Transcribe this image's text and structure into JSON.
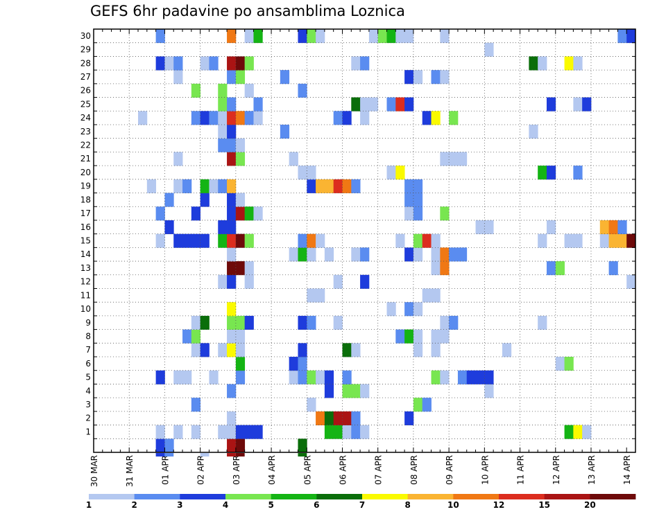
{
  "chart_data": {
    "type": "heatmap",
    "title": "GEFS 6hr padavine po ansamblima Loznica",
    "xlabel": "",
    "ylabel": "",
    "x_labels": [
      "30 MAR",
      "31 MAR",
      "01 APR",
      "02 APR",
      "03 APR",
      "04 APR",
      "05 APR",
      "06 APR",
      "07 APR",
      "08 APR",
      "09 APR",
      "10 APR",
      "11 APR",
      "12 APR",
      "13 APR",
      "14 APR"
    ],
    "x_steps": 61,
    "steps_per_day": 4,
    "y_labels": [
      "1",
      "2",
      "3",
      "4",
      "5",
      "6",
      "7",
      "8",
      "9",
      "10",
      "11",
      "12",
      "13",
      "14",
      "15",
      "16",
      "17",
      "18",
      "19",
      "20",
      "21",
      "22",
      "23",
      "24",
      "25",
      "26",
      "27",
      "28",
      "29",
      "30"
    ],
    "y_rows": 31,
    "colorbar_labels": [
      "1",
      "2",
      "3",
      "4",
      "5",
      "6",
      "7",
      "8",
      "10",
      "12",
      "15",
      "20"
    ],
    "levels": [
      {
        "name": "level-1-2",
        "color": "#b4c8f0"
      },
      {
        "name": "level-2-3",
        "color": "#5a8cf0"
      },
      {
        "name": "level-3-4",
        "color": "#1e3cdc"
      },
      {
        "name": "level-4-5",
        "color": "#78e650"
      },
      {
        "name": "level-5-6",
        "color": "#14b414"
      },
      {
        "name": "level-6-7",
        "color": "#0a6e0a"
      },
      {
        "name": "level-7-8",
        "color": "#fafa00"
      },
      {
        "name": "level-8-10",
        "color": "#fab432"
      },
      {
        "name": "level-10-12",
        "color": "#f07814"
      },
      {
        "name": "level-12-15",
        "color": "#dc2d1e"
      },
      {
        "name": "level-15-20",
        "color": "#aa1414"
      },
      {
        "name": "level-20+",
        "color": "#6e0a0a"
      }
    ],
    "cells": [
      [
        7,
        0,
        3
      ],
      [
        8,
        0,
        2
      ],
      [
        15,
        0,
        11
      ],
      [
        16,
        0,
        12
      ],
      [
        23,
        0,
        6
      ],
      [
        7,
        1,
        1
      ],
      [
        9,
        1,
        1
      ],
      [
        11,
        1,
        1
      ],
      [
        14,
        1,
        1
      ],
      [
        15,
        1,
        1
      ],
      [
        16,
        1,
        3
      ],
      [
        17,
        1,
        3
      ],
      [
        18,
        1,
        3
      ],
      [
        26,
        1,
        5
      ],
      [
        27,
        1,
        5
      ],
      [
        28,
        1,
        1
      ],
      [
        29,
        1,
        2
      ],
      [
        30,
        1,
        1
      ],
      [
        53,
        1,
        5
      ],
      [
        54,
        1,
        7
      ],
      [
        55,
        1,
        1
      ],
      [
        15,
        2,
        1
      ],
      [
        25,
        2,
        9
      ],
      [
        26,
        2,
        6
      ],
      [
        27,
        2,
        11
      ],
      [
        28,
        2,
        11
      ],
      [
        29,
        2,
        2
      ],
      [
        35,
        2,
        3
      ],
      [
        11,
        3,
        2
      ],
      [
        24,
        3,
        1
      ],
      [
        36,
        3,
        4
      ],
      [
        37,
        3,
        2
      ],
      [
        15,
        4,
        2
      ],
      [
        26,
        4,
        3
      ],
      [
        28,
        4,
        4
      ],
      [
        29,
        4,
        4
      ],
      [
        30,
        4,
        1
      ],
      [
        44,
        4,
        1
      ],
      [
        7,
        5,
        3
      ],
      [
        9,
        5,
        1
      ],
      [
        10,
        5,
        1
      ],
      [
        13,
        5,
        1
      ],
      [
        16,
        5,
        2
      ],
      [
        22,
        5,
        1
      ],
      [
        23,
        5,
        2
      ],
      [
        24,
        5,
        4
      ],
      [
        25,
        5,
        1
      ],
      [
        26,
        5,
        3
      ],
      [
        28,
        5,
        2
      ],
      [
        38,
        5,
        4
      ],
      [
        39,
        5,
        1
      ],
      [
        41,
        5,
        2
      ],
      [
        42,
        5,
        3
      ],
      [
        43,
        5,
        3
      ],
      [
        44,
        5,
        3
      ],
      [
        16,
        6,
        5
      ],
      [
        22,
        6,
        3
      ],
      [
        23,
        6,
        2
      ],
      [
        52,
        6,
        1
      ],
      [
        53,
        6,
        4
      ],
      [
        11,
        7,
        1
      ],
      [
        12,
        7,
        3
      ],
      [
        14,
        7,
        1
      ],
      [
        15,
        7,
        7
      ],
      [
        16,
        7,
        1
      ],
      [
        23,
        7,
        3
      ],
      [
        28,
        7,
        6
      ],
      [
        29,
        7,
        1
      ],
      [
        36,
        7,
        1
      ],
      [
        38,
        7,
        1
      ],
      [
        46,
        7,
        1
      ],
      [
        10,
        8,
        2
      ],
      [
        11,
        8,
        4
      ],
      [
        15,
        8,
        1
      ],
      [
        16,
        8,
        1
      ],
      [
        34,
        8,
        2
      ],
      [
        35,
        8,
        5
      ],
      [
        36,
        8,
        1
      ],
      [
        38,
        8,
        1
      ],
      [
        39,
        8,
        1
      ],
      [
        11,
        9,
        1
      ],
      [
        12,
        9,
        6
      ],
      [
        15,
        9,
        4
      ],
      [
        16,
        9,
        4
      ],
      [
        17,
        9,
        3
      ],
      [
        23,
        9,
        3
      ],
      [
        24,
        9,
        2
      ],
      [
        27,
        9,
        1
      ],
      [
        39,
        9,
        1
      ],
      [
        40,
        9,
        2
      ],
      [
        50,
        9,
        1
      ],
      [
        15,
        10,
        7
      ],
      [
        33,
        10,
        1
      ],
      [
        35,
        10,
        2
      ],
      [
        36,
        10,
        1
      ],
      [
        24,
        11,
        1
      ],
      [
        25,
        11,
        1
      ],
      [
        37,
        11,
        1
      ],
      [
        38,
        11,
        1
      ],
      [
        14,
        12,
        1
      ],
      [
        15,
        12,
        3
      ],
      [
        17,
        12,
        1
      ],
      [
        27,
        12,
        1
      ],
      [
        30,
        12,
        3
      ],
      [
        60,
        12,
        1
      ],
      [
        15,
        13,
        12
      ],
      [
        16,
        13,
        12
      ],
      [
        17,
        13,
        1
      ],
      [
        38,
        13,
        1
      ],
      [
        39,
        13,
        9
      ],
      [
        51,
        13,
        2
      ],
      [
        52,
        13,
        4
      ],
      [
        58,
        13,
        2
      ],
      [
        15,
        14,
        1
      ],
      [
        22,
        14,
        1
      ],
      [
        23,
        14,
        5
      ],
      [
        24,
        14,
        1
      ],
      [
        26,
        14,
        1
      ],
      [
        29,
        14,
        1
      ],
      [
        30,
        14,
        2
      ],
      [
        35,
        14,
        3
      ],
      [
        36,
        14,
        1
      ],
      [
        38,
        14,
        1
      ],
      [
        39,
        14,
        9
      ],
      [
        40,
        14,
        2
      ],
      [
        41,
        14,
        2
      ],
      [
        7,
        15,
        1
      ],
      [
        9,
        15,
        3
      ],
      [
        10,
        15,
        3
      ],
      [
        11,
        15,
        3
      ],
      [
        12,
        15,
        3
      ],
      [
        14,
        15,
        5
      ],
      [
        15,
        15,
        10
      ],
      [
        16,
        15,
        12
      ],
      [
        17,
        15,
        4
      ],
      [
        23,
        15,
        2
      ],
      [
        24,
        15,
        9
      ],
      [
        25,
        15,
        1
      ],
      [
        34,
        15,
        1
      ],
      [
        36,
        15,
        4
      ],
      [
        37,
        15,
        10
      ],
      [
        38,
        15,
        1
      ],
      [
        50,
        15,
        1
      ],
      [
        53,
        15,
        1
      ],
      [
        54,
        15,
        1
      ],
      [
        57,
        15,
        1
      ],
      [
        58,
        15,
        8
      ],
      [
        59,
        15,
        8
      ],
      [
        60,
        15,
        12
      ],
      [
        8,
        16,
        3
      ],
      [
        14,
        16,
        3
      ],
      [
        15,
        16,
        3
      ],
      [
        43,
        16,
        1
      ],
      [
        44,
        16,
        1
      ],
      [
        51,
        16,
        1
      ],
      [
        57,
        16,
        8
      ],
      [
        58,
        16,
        9
      ],
      [
        59,
        16,
        2
      ],
      [
        7,
        17,
        2
      ],
      [
        11,
        17,
        3
      ],
      [
        15,
        17,
        3
      ],
      [
        16,
        17,
        11
      ],
      [
        17,
        17,
        5
      ],
      [
        18,
        17,
        1
      ],
      [
        35,
        17,
        1
      ],
      [
        36,
        17,
        2
      ],
      [
        39,
        17,
        4
      ],
      [
        8,
        18,
        2
      ],
      [
        12,
        18,
        3
      ],
      [
        15,
        18,
        3
      ],
      [
        16,
        18,
        1
      ],
      [
        35,
        18,
        2
      ],
      [
        36,
        18,
        2
      ],
      [
        6,
        19,
        1
      ],
      [
        9,
        19,
        1
      ],
      [
        10,
        19,
        2
      ],
      [
        12,
        19,
        5
      ],
      [
        13,
        19,
        1
      ],
      [
        14,
        19,
        2
      ],
      [
        15,
        19,
        8
      ],
      [
        24,
        19,
        3
      ],
      [
        25,
        19,
        8
      ],
      [
        26,
        19,
        8
      ],
      [
        27,
        19,
        10
      ],
      [
        28,
        19,
        9
      ],
      [
        29,
        19,
        2
      ],
      [
        35,
        19,
        2
      ],
      [
        36,
        19,
        2
      ],
      [
        23,
        20,
        1
      ],
      [
        24,
        20,
        1
      ],
      [
        33,
        20,
        1
      ],
      [
        34,
        20,
        7
      ],
      [
        50,
        20,
        5
      ],
      [
        51,
        20,
        3
      ],
      [
        54,
        20,
        2
      ],
      [
        9,
        21,
        1
      ],
      [
        15,
        21,
        11
      ],
      [
        16,
        21,
        4
      ],
      [
        22,
        21,
        1
      ],
      [
        39,
        21,
        1
      ],
      [
        40,
        21,
        1
      ],
      [
        41,
        21,
        1
      ],
      [
        14,
        22,
        2
      ],
      [
        15,
        22,
        2
      ],
      [
        16,
        22,
        1
      ],
      [
        14,
        23,
        1
      ],
      [
        15,
        23,
        3
      ],
      [
        21,
        23,
        2
      ],
      [
        49,
        23,
        1
      ],
      [
        5,
        24,
        1
      ],
      [
        11,
        24,
        2
      ],
      [
        12,
        24,
        3
      ],
      [
        13,
        24,
        2
      ],
      [
        14,
        24,
        1
      ],
      [
        15,
        24,
        10
      ],
      [
        16,
        24,
        9
      ],
      [
        17,
        24,
        2
      ],
      [
        18,
        24,
        1
      ],
      [
        27,
        24,
        2
      ],
      [
        28,
        24,
        3
      ],
      [
        30,
        24,
        1
      ],
      [
        37,
        24,
        3
      ],
      [
        38,
        24,
        7
      ],
      [
        40,
        24,
        4
      ],
      [
        14,
        25,
        4
      ],
      [
        15,
        25,
        2
      ],
      [
        18,
        25,
        2
      ],
      [
        29,
        25,
        6
      ],
      [
        30,
        25,
        1
      ],
      [
        31,
        25,
        1
      ],
      [
        33,
        25,
        2
      ],
      [
        34,
        25,
        10
      ],
      [
        35,
        25,
        3
      ],
      [
        51,
        25,
        3
      ],
      [
        54,
        25,
        1
      ],
      [
        55,
        25,
        3
      ],
      [
        11,
        26,
        4
      ],
      [
        14,
        26,
        4
      ],
      [
        17,
        26,
        1
      ],
      [
        23,
        26,
        2
      ],
      [
        9,
        27,
        1
      ],
      [
        15,
        27,
        2
      ],
      [
        16,
        27,
        4
      ],
      [
        21,
        27,
        2
      ],
      [
        35,
        27,
        3
      ],
      [
        36,
        27,
        1
      ],
      [
        38,
        27,
        2
      ],
      [
        39,
        27,
        1
      ],
      [
        7,
        28,
        3
      ],
      [
        8,
        28,
        1
      ],
      [
        9,
        28,
        2
      ],
      [
        12,
        28,
        1
      ],
      [
        13,
        28,
        2
      ],
      [
        15,
        28,
        11
      ],
      [
        16,
        28,
        12
      ],
      [
        17,
        28,
        4
      ],
      [
        29,
        28,
        1
      ],
      [
        30,
        28,
        2
      ],
      [
        49,
        28,
        6
      ],
      [
        50,
        28,
        1
      ],
      [
        53,
        28,
        7
      ],
      [
        54,
        28,
        1
      ],
      [
        44,
        29,
        1
      ],
      [
        7,
        30,
        2
      ],
      [
        15,
        30,
        9
      ],
      [
        17,
        30,
        1
      ],
      [
        18,
        30,
        5
      ],
      [
        23,
        30,
        3
      ],
      [
        24,
        30,
        4
      ],
      [
        25,
        30,
        1
      ],
      [
        31,
        30,
        1
      ],
      [
        32,
        30,
        4
      ],
      [
        33,
        30,
        5
      ],
      [
        34,
        30,
        1
      ],
      [
        35,
        30,
        1
      ],
      [
        39,
        30,
        1
      ],
      [
        59,
        30,
        2
      ],
      [
        60,
        30,
        3
      ]
    ],
    "below_axis_marks": [
      [
        7,
        3
      ],
      [
        8,
        2
      ],
      [
        12,
        1
      ],
      [
        15,
        11
      ],
      [
        16,
        12
      ],
      [
        23,
        6
      ]
    ]
  }
}
